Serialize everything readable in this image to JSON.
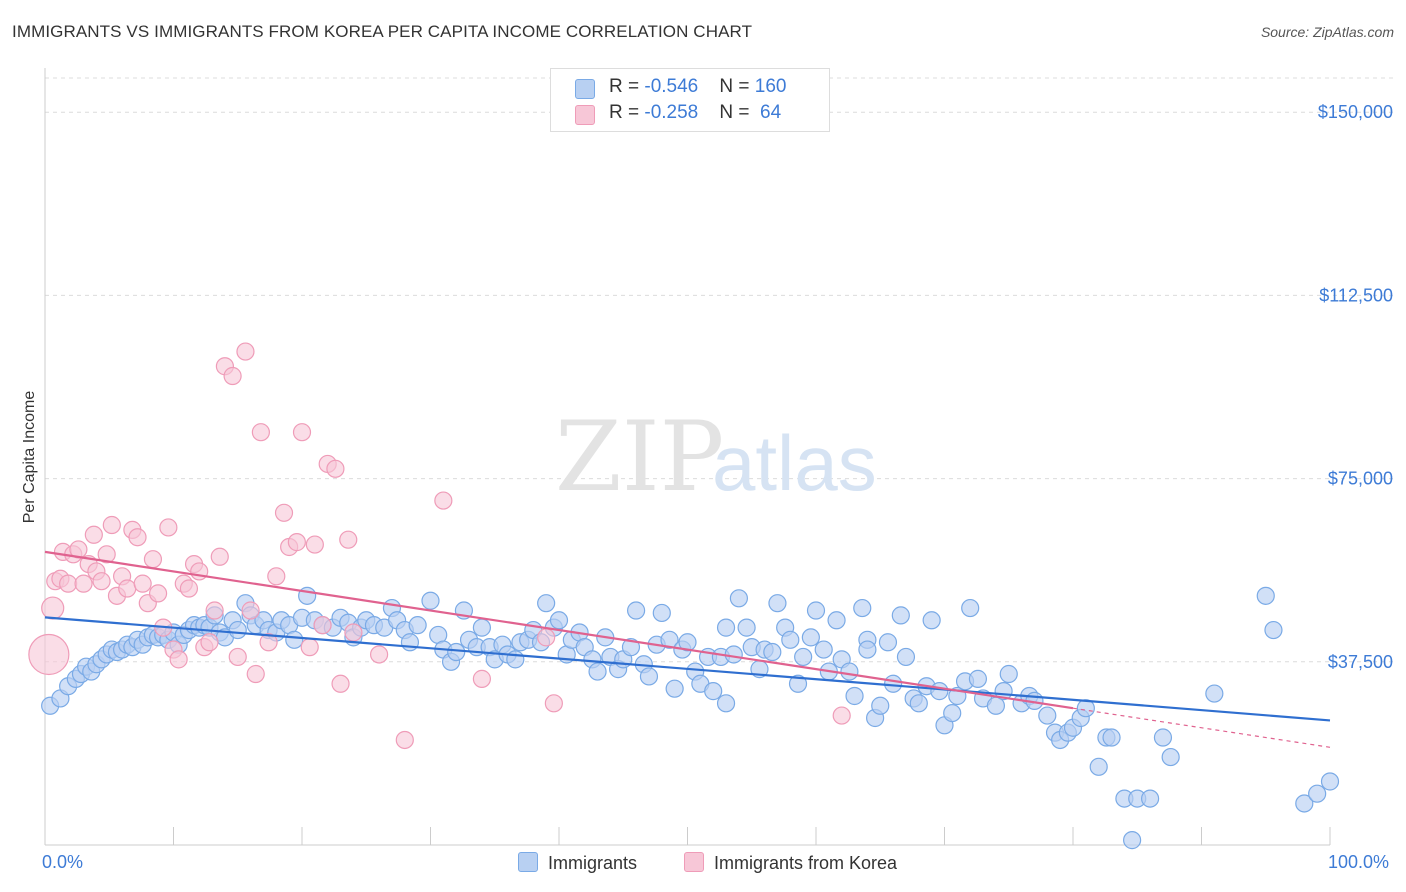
{
  "title": "IMMIGRANTS VS IMMIGRANTS FROM KOREA PER CAPITA INCOME CORRELATION CHART",
  "source": "Source: ZipAtlas.com",
  "watermark": {
    "zip": "ZIP",
    "atlas": "atlas"
  },
  "colors": {
    "blue": "#7aaae6",
    "blue_fill": "#b8d0f2",
    "blue_line": "#2f6fd0",
    "pink": "#ef9cb8",
    "pink_fill": "#f7c7d7",
    "pink_line": "#e0628f",
    "axis_text": "#3d7bd6",
    "grid": "#dcdcdc"
  },
  "legend": {
    "rows": [
      {
        "r_label": "R = ",
        "r_value": "-0.546",
        "n_label": "N = ",
        "n_value": "160",
        "color": "#b8d0f2"
      },
      {
        "r_label": "R = ",
        "r_value": "-0.258",
        "n_label": "N = ",
        "n_value": " 64",
        "color": "#f7c7d7"
      }
    ]
  },
  "bottom_legend": [
    {
      "label": "Immigrants",
      "color": "#b8d0f2"
    },
    {
      "label": "Immigrants from Korea",
      "color": "#f7c7d7"
    }
  ],
  "chart_data": {
    "type": "scatter",
    "title": "IMMIGRANTS VS IMMIGRANTS FROM KOREA PER CAPITA INCOME CORRELATION CHART",
    "xlabel": "",
    "ylabel": "Per Capita Income",
    "xlim": [
      0,
      100
    ],
    "ylim": [
      0,
      157000
    ],
    "x_tick_labels": [
      "0.0%",
      "100.0%"
    ],
    "y_ticks": [
      37500,
      75000,
      112500,
      150000
    ],
    "y_tick_labels": [
      "$37,500",
      "$75,000",
      "$112,500",
      "$150,000"
    ],
    "grid": true,
    "series": [
      {
        "name": "Immigrants",
        "color": "#7aaae6",
        "trend": {
          "x": [
            0,
            100
          ],
          "y": [
            46600,
            25500
          ]
        },
        "points": [
          [
            0.4,
            28500
          ],
          [
            1.2,
            30000
          ],
          [
            1.8,
            32500
          ],
          [
            2.4,
            34000
          ],
          [
            2.8,
            35000
          ],
          [
            3.2,
            36500
          ],
          [
            3.6,
            35500
          ],
          [
            4.0,
            37000
          ],
          [
            4.4,
            38000
          ],
          [
            4.8,
            39000
          ],
          [
            5.2,
            40000
          ],
          [
            5.6,
            39500
          ],
          [
            6.0,
            40000
          ],
          [
            6.4,
            41000
          ],
          [
            6.8,
            40500
          ],
          [
            7.2,
            42000
          ],
          [
            7.6,
            41000
          ],
          [
            8.0,
            42500
          ],
          [
            8.4,
            43000
          ],
          [
            8.8,
            42500
          ],
          [
            9.2,
            43000
          ],
          [
            9.6,
            42000
          ],
          [
            10.0,
            43500
          ],
          [
            10.4,
            41000
          ],
          [
            10.8,
            43000
          ],
          [
            11.2,
            44000
          ],
          [
            11.6,
            45000
          ],
          [
            12.0,
            44500
          ],
          [
            12.4,
            45000
          ],
          [
            12.8,
            44500
          ],
          [
            13.2,
            47000
          ],
          [
            13.6,
            43500
          ],
          [
            14.0,
            42500
          ],
          [
            14.6,
            46000
          ],
          [
            15.0,
            44000
          ],
          [
            15.6,
            49500
          ],
          [
            16.0,
            47000
          ],
          [
            16.4,
            45000
          ],
          [
            17.0,
            46000
          ],
          [
            17.4,
            44000
          ],
          [
            18.0,
            43500
          ],
          [
            18.4,
            46000
          ],
          [
            19.0,
            45000
          ],
          [
            19.4,
            42000
          ],
          [
            20.0,
            46500
          ],
          [
            20.4,
            51000
          ],
          [
            21.0,
            46000
          ],
          [
            21.6,
            45000
          ],
          [
            22.4,
            44500
          ],
          [
            23.0,
            46500
          ],
          [
            23.6,
            45500
          ],
          [
            24.0,
            42500
          ],
          [
            24.6,
            44500
          ],
          [
            25.0,
            46000
          ],
          [
            25.6,
            45000
          ],
          [
            26.4,
            44500
          ],
          [
            27.0,
            48500
          ],
          [
            27.4,
            46000
          ],
          [
            28.0,
            44000
          ],
          [
            28.4,
            41500
          ],
          [
            29.0,
            45000
          ],
          [
            30.0,
            50000
          ],
          [
            30.6,
            43000
          ],
          [
            31.0,
            40000
          ],
          [
            31.6,
            37500
          ],
          [
            32.0,
            39500
          ],
          [
            32.6,
            48000
          ],
          [
            33.0,
            42000
          ],
          [
            33.6,
            40500
          ],
          [
            34.0,
            44500
          ],
          [
            34.6,
            40500
          ],
          [
            35.0,
            38000
          ],
          [
            35.6,
            41000
          ],
          [
            36.0,
            39000
          ],
          [
            36.6,
            38000
          ],
          [
            37.0,
            41500
          ],
          [
            37.6,
            42000
          ],
          [
            38.0,
            44000
          ],
          [
            38.6,
            41500
          ],
          [
            39.0,
            49500
          ],
          [
            39.6,
            44500
          ],
          [
            40.0,
            46000
          ],
          [
            40.6,
            39000
          ],
          [
            41.0,
            42000
          ],
          [
            41.6,
            43500
          ],
          [
            42.0,
            40500
          ],
          [
            42.6,
            38000
          ],
          [
            43.0,
            35500
          ],
          [
            43.6,
            42500
          ],
          [
            44.0,
            38500
          ],
          [
            44.6,
            36000
          ],
          [
            45.0,
            38000
          ],
          [
            45.6,
            40500
          ],
          [
            46.0,
            48000
          ],
          [
            46.6,
            37000
          ],
          [
            47.0,
            34500
          ],
          [
            47.6,
            41000
          ],
          [
            48.0,
            47500
          ],
          [
            48.6,
            42000
          ],
          [
            49.0,
            32000
          ],
          [
            49.6,
            40000
          ],
          [
            50.0,
            41500
          ],
          [
            50.6,
            35500
          ],
          [
            51.0,
            33000
          ],
          [
            51.6,
            38500
          ],
          [
            52.0,
            31500
          ],
          [
            52.6,
            38500
          ],
          [
            53.0,
            44500
          ],
          [
            53.6,
            39000
          ],
          [
            54.0,
            50500
          ],
          [
            54.6,
            44500
          ],
          [
            55.0,
            40500
          ],
          [
            55.6,
            36000
          ],
          [
            56.0,
            40000
          ],
          [
            56.6,
            39500
          ],
          [
            57.0,
            49500
          ],
          [
            57.6,
            44500
          ],
          [
            58.0,
            42000
          ],
          [
            58.6,
            33000
          ],
          [
            59.0,
            38500
          ],
          [
            59.6,
            42500
          ],
          [
            60.0,
            48000
          ],
          [
            60.6,
            40000
          ],
          [
            61.0,
            35500
          ],
          [
            61.6,
            46000
          ],
          [
            62.0,
            38000
          ],
          [
            62.6,
            35500
          ],
          [
            63.0,
            30500
          ],
          [
            63.6,
            48500
          ],
          [
            64.0,
            42000
          ],
          [
            64.6,
            26000
          ],
          [
            65.0,
            28500
          ],
          [
            65.6,
            41500
          ],
          [
            66.0,
            33000
          ],
          [
            66.6,
            47000
          ],
          [
            67.0,
            38500
          ],
          [
            67.6,
            30000
          ],
          [
            68.0,
            29000
          ],
          [
            68.6,
            32500
          ],
          [
            69.0,
            46000
          ],
          [
            69.6,
            31500
          ],
          [
            70.0,
            24500
          ],
          [
            70.6,
            27000
          ],
          [
            71.0,
            30500
          ],
          [
            71.6,
            33500
          ],
          [
            72.0,
            48500
          ],
          [
            72.6,
            34000
          ],
          [
            73.0,
            30000
          ],
          [
            74.0,
            28500
          ],
          [
            74.6,
            31500
          ],
          [
            75.0,
            35000
          ],
          [
            76.0,
            29000
          ],
          [
            76.6,
            30500
          ],
          [
            77.0,
            29500
          ],
          [
            78.0,
            26500
          ],
          [
            78.6,
            23000
          ],
          [
            79.0,
            21500
          ],
          [
            79.6,
            23000
          ],
          [
            80.0,
            24000
          ],
          [
            80.6,
            26000
          ],
          [
            81.0,
            28000
          ],
          [
            82.0,
            16000
          ],
          [
            82.6,
            22000
          ],
          [
            83.0,
            22000
          ],
          [
            84.0,
            9500
          ],
          [
            84.6,
            1000
          ],
          [
            85.0,
            9500
          ],
          [
            86.0,
            9500
          ],
          [
            87.0,
            22000
          ],
          [
            87.6,
            18000
          ],
          [
            91.0,
            31000
          ],
          [
            95.0,
            51000
          ],
          [
            95.6,
            44000
          ],
          [
            98.0,
            8500
          ],
          [
            99.0,
            10500
          ],
          [
            100.0,
            13000
          ],
          [
            64.0,
            40000
          ],
          [
            53.0,
            29000
          ]
        ]
      },
      {
        "name": "Immigrants from Korea",
        "color": "#ef9cb8",
        "trend": {
          "x": [
            0,
            80
          ],
          "y": [
            60000,
            28000
          ]
        },
        "points": [
          [
            0.3,
            39000
          ],
          [
            0.6,
            48500
          ],
          [
            0.8,
            54000
          ],
          [
            1.2,
            54500
          ],
          [
            1.4,
            60000
          ],
          [
            1.8,
            53500
          ],
          [
            2.2,
            59500
          ],
          [
            2.6,
            60500
          ],
          [
            3.0,
            53500
          ],
          [
            3.4,
            57500
          ],
          [
            3.8,
            63500
          ],
          [
            4.0,
            56000
          ],
          [
            4.4,
            54000
          ],
          [
            4.8,
            59500
          ],
          [
            5.2,
            65500
          ],
          [
            5.6,
            51000
          ],
          [
            6.0,
            55000
          ],
          [
            6.4,
            52500
          ],
          [
            6.8,
            64500
          ],
          [
            7.2,
            63000
          ],
          [
            7.6,
            53500
          ],
          [
            8.0,
            49500
          ],
          [
            8.4,
            58500
          ],
          [
            8.8,
            51500
          ],
          [
            9.2,
            44500
          ],
          [
            9.6,
            65000
          ],
          [
            10.0,
            40000
          ],
          [
            10.4,
            38000
          ],
          [
            10.8,
            53500
          ],
          [
            11.2,
            52500
          ],
          [
            11.6,
            57500
          ],
          [
            12.0,
            56000
          ],
          [
            12.4,
            40500
          ],
          [
            12.8,
            41500
          ],
          [
            13.2,
            48000
          ],
          [
            13.6,
            59000
          ],
          [
            14.0,
            98000
          ],
          [
            14.6,
            96000
          ],
          [
            15.0,
            38500
          ],
          [
            15.6,
            101000
          ],
          [
            16.0,
            48000
          ],
          [
            16.4,
            35000
          ],
          [
            16.8,
            84500
          ],
          [
            17.4,
            41500
          ],
          [
            18.0,
            55000
          ],
          [
            18.6,
            68000
          ],
          [
            19.0,
            61000
          ],
          [
            19.6,
            62000
          ],
          [
            20.0,
            84500
          ],
          [
            20.6,
            40500
          ],
          [
            21.0,
            61500
          ],
          [
            21.6,
            45000
          ],
          [
            22.0,
            78000
          ],
          [
            22.6,
            77000
          ],
          [
            23.0,
            33000
          ],
          [
            23.6,
            62500
          ],
          [
            24.0,
            43500
          ],
          [
            26.0,
            39000
          ],
          [
            28.0,
            21500
          ],
          [
            31.0,
            70500
          ],
          [
            34.0,
            34000
          ],
          [
            39.0,
            42500
          ],
          [
            39.6,
            29000
          ],
          [
            62.0,
            26500
          ]
        ]
      }
    ]
  }
}
